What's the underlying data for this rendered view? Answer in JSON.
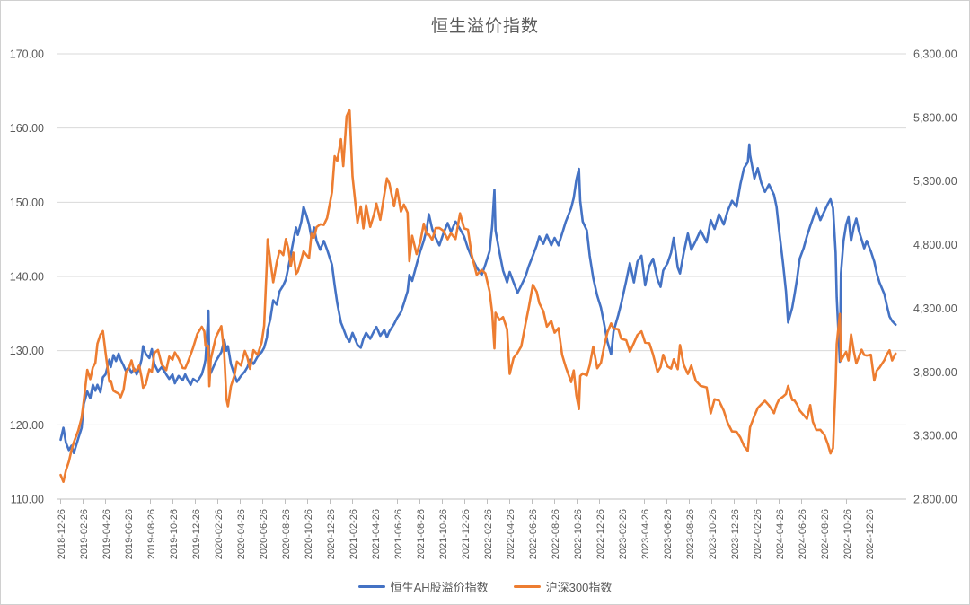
{
  "chart": {
    "title": "恒生溢价指数"
  },
  "legend": {
    "items": [
      {
        "label": "恒生AH股溢价指数",
        "color": "#4472C4"
      },
      {
        "label": "沪深300指数",
        "color": "#ED7D31"
      }
    ]
  },
  "colors": {
    "series_blue": "#4472C4",
    "series_orange": "#ED7D31",
    "axis_text": "#595959",
    "gridline": "#D9D9D9",
    "axis_line": "#BFBFBF"
  },
  "chart_data": {
    "type": "line",
    "title": "恒生溢价指数",
    "grid": "horizontal",
    "legend_position": "bottom",
    "left_axis": {
      "min": 110,
      "max": 170,
      "step": 10,
      "tick_labels": [
        "170.00",
        "160.00",
        "150.00",
        "140.00",
        "130.00",
        "120.00",
        "110.00"
      ]
    },
    "right_axis": {
      "min": 2800,
      "max": 6300,
      "step": 500,
      "tick_labels": [
        "6,300.00",
        "5,800.00",
        "5,300.00",
        "4,800.00",
        "4,300.00",
        "3,800.00",
        "3,300.00",
        "2,800.00"
      ]
    },
    "x_axis": {
      "tick_label_rotation": -90,
      "tick_labels": [
        "2018-12-26",
        "2019-02-26",
        "2019-04-26",
        "2019-06-26",
        "2019-08-26",
        "2019-10-26",
        "2019-12-26",
        "2020-02-26",
        "2020-04-26",
        "2020-06-26",
        "2020-08-26",
        "2020-10-26",
        "2020-12-26",
        "2021-02-26",
        "2021-04-26",
        "2021-06-26",
        "2021-08-26",
        "2021-10-26",
        "2021-12-26",
        "2022-02-26",
        "2022-04-26",
        "2022-06-26",
        "2022-08-26",
        "2022-10-26",
        "2022-12-26",
        "2023-02-26",
        "2023-04-26",
        "2023-06-26",
        "2023-08-26",
        "2023-10-26",
        "2023-12-26",
        "2024-02-26",
        "2024-04-26",
        "2024-06-26",
        "2024-08-26",
        "2024-10-26",
        "2024-12-26"
      ]
    },
    "series": [
      {
        "name": "恒生AH股溢价指数",
        "axis": "left",
        "color": "#4472C4",
        "value_index": 1
      },
      {
        "name": "沪深300指数",
        "axis": "right",
        "color": "#ED7D31",
        "value_index": 2
      }
    ],
    "points": [
      [
        "2018-12-26",
        118.0,
        2990
      ],
      [
        "2019-01-03",
        119.6,
        2936
      ],
      [
        "2019-01-10",
        117.6,
        3025
      ],
      [
        "2019-01-18",
        116.6,
        3095
      ],
      [
        "2019-01-25",
        117.2,
        3184
      ],
      [
        "2019-02-01",
        116.2,
        3247
      ],
      [
        "2019-02-13",
        118.2,
        3340
      ],
      [
        "2019-02-22",
        119.6,
        3440
      ],
      [
        "2019-02-28",
        122.8,
        3572
      ],
      [
        "2019-03-07",
        124.5,
        3816
      ],
      [
        "2019-03-15",
        123.6,
        3743
      ],
      [
        "2019-03-22",
        125.4,
        3835
      ],
      [
        "2019-03-29",
        124.6,
        3872
      ],
      [
        "2019-04-04",
        125.4,
        4022
      ],
      [
        "2019-04-12",
        124.4,
        4092
      ],
      [
        "2019-04-19",
        126.4,
        4120
      ],
      [
        "2019-04-26",
        126.8,
        3953
      ],
      [
        "2019-05-06",
        128.8,
        3722
      ],
      [
        "2019-05-10",
        127.8,
        3730
      ],
      [
        "2019-05-17",
        129.4,
        3652
      ],
      [
        "2019-05-24",
        128.6,
        3640
      ],
      [
        "2019-05-31",
        129.6,
        3629
      ],
      [
        "2019-06-06",
        128.8,
        3600
      ],
      [
        "2019-06-14",
        128.0,
        3660
      ],
      [
        "2019-06-21",
        127.2,
        3800
      ],
      [
        "2019-06-28",
        127.8,
        3825
      ],
      [
        "2019-07-05",
        127.0,
        3890
      ],
      [
        "2019-07-12",
        127.6,
        3808
      ],
      [
        "2019-07-19",
        126.8,
        3815
      ],
      [
        "2019-07-26",
        127.6,
        3850
      ],
      [
        "2019-08-02",
        128.8,
        3758
      ],
      [
        "2019-08-06",
        130.6,
        3675
      ],
      [
        "2019-08-13",
        129.6,
        3700
      ],
      [
        "2019-08-23",
        129.0,
        3820
      ],
      [
        "2019-08-30",
        130.2,
        3800
      ],
      [
        "2019-09-06",
        128.2,
        3948
      ],
      [
        "2019-09-16",
        127.2,
        3972
      ],
      [
        "2019-09-26",
        127.8,
        3860
      ],
      [
        "2019-10-08",
        126.8,
        3814
      ],
      [
        "2019-10-16",
        126.2,
        3920
      ],
      [
        "2019-10-25",
        126.8,
        3896
      ],
      [
        "2019-11-01",
        125.6,
        3953
      ],
      [
        "2019-11-11",
        126.6,
        3905
      ],
      [
        "2019-11-22",
        126.0,
        3830
      ],
      [
        "2019-11-29",
        126.8,
        3828
      ],
      [
        "2019-12-06",
        126.0,
        3880
      ],
      [
        "2019-12-13",
        125.4,
        3935
      ],
      [
        "2019-12-20",
        126.2,
        3990
      ],
      [
        "2019-12-31",
        125.8,
        4097
      ],
      [
        "2020-01-13",
        126.8,
        4155
      ],
      [
        "2020-01-20",
        128.0,
        4118
      ],
      [
        "2020-01-23",
        128.8,
        4004
      ],
      [
        "2020-01-31",
        135.4,
        4004
      ],
      [
        "2020-02-03",
        127.6,
        3688
      ],
      [
        "2020-02-07",
        127.0,
        3900
      ],
      [
        "2020-02-14",
        127.8,
        3988
      ],
      [
        "2020-02-21",
        128.6,
        4074
      ],
      [
        "2020-03-05",
        129.8,
        4160
      ],
      [
        "2020-03-13",
        131.4,
        3940
      ],
      [
        "2020-03-19",
        130.0,
        3589
      ],
      [
        "2020-03-23",
        130.6,
        3530
      ],
      [
        "2020-03-31",
        128.2,
        3686
      ],
      [
        "2020-04-10",
        126.8,
        3769
      ],
      [
        "2020-04-17",
        125.8,
        3881
      ],
      [
        "2020-04-28",
        126.6,
        3850
      ],
      [
        "2020-05-08",
        127.2,
        3964
      ],
      [
        "2020-05-15",
        127.8,
        3912
      ],
      [
        "2020-05-22",
        128.8,
        3824
      ],
      [
        "2020-06-01",
        128.2,
        3971
      ],
      [
        "2020-06-12",
        129.2,
        3934
      ],
      [
        "2020-06-23",
        129.8,
        4030
      ],
      [
        "2020-06-30",
        130.4,
        4163
      ],
      [
        "2020-07-07",
        131.8,
        4670
      ],
      [
        "2020-07-09",
        132.8,
        4842
      ],
      [
        "2020-07-16",
        134.2,
        4680
      ],
      [
        "2020-07-24",
        136.8,
        4505
      ],
      [
        "2020-08-03",
        136.2,
        4660
      ],
      [
        "2020-08-11",
        138.0,
        4755
      ],
      [
        "2020-08-21",
        138.8,
        4718
      ],
      [
        "2020-08-28",
        139.6,
        4844
      ],
      [
        "2020-09-04",
        141.2,
        4770
      ],
      [
        "2020-09-11",
        143.0,
        4633
      ],
      [
        "2020-09-18",
        144.8,
        4737
      ],
      [
        "2020-09-25",
        146.6,
        4570
      ],
      [
        "2020-09-30",
        145.6,
        4588
      ],
      [
        "2020-10-09",
        147.4,
        4682
      ],
      [
        "2020-10-15",
        149.4,
        4748
      ],
      [
        "2020-10-23",
        148.2,
        4718
      ],
      [
        "2020-10-30",
        147.0,
        4695
      ],
      [
        "2020-11-06",
        145.2,
        4886
      ],
      [
        "2020-11-13",
        146.6,
        4856
      ],
      [
        "2020-11-20",
        144.8,
        4938
      ],
      [
        "2020-11-30",
        143.6,
        4960
      ],
      [
        "2020-12-09",
        144.8,
        4955
      ],
      [
        "2020-12-18",
        143.6,
        5010
      ],
      [
        "2020-12-31",
        141.6,
        5211
      ],
      [
        "2021-01-08",
        138.8,
        5495
      ],
      [
        "2021-01-15",
        136.4,
        5458
      ],
      [
        "2021-01-25",
        133.8,
        5629
      ],
      [
        "2021-02-01",
        133.0,
        5417
      ],
      [
        "2021-02-10",
        131.8,
        5808
      ],
      [
        "2021-02-18",
        131.2,
        5861
      ],
      [
        "2021-02-26",
        132.4,
        5337
      ],
      [
        "2021-03-09",
        130.8,
        4971
      ],
      [
        "2021-03-18",
        130.4,
        5101
      ],
      [
        "2021-03-25",
        131.6,
        4928
      ],
      [
        "2021-04-02",
        132.4,
        5110
      ],
      [
        "2021-04-13",
        131.6,
        4940
      ],
      [
        "2021-04-23",
        132.6,
        5035
      ],
      [
        "2021-04-30",
        133.2,
        5123
      ],
      [
        "2021-05-10",
        132.0,
        4996
      ],
      [
        "2021-05-21",
        132.8,
        5194
      ],
      [
        "2021-05-28",
        131.8,
        5321
      ],
      [
        "2021-06-04",
        132.6,
        5282
      ],
      [
        "2021-06-17",
        133.6,
        5102
      ],
      [
        "2021-06-25",
        134.4,
        5240
      ],
      [
        "2021-07-05",
        135.2,
        5060
      ],
      [
        "2021-07-13",
        136.4,
        5115
      ],
      [
        "2021-07-23",
        138.0,
        5051
      ],
      [
        "2021-07-28",
        140.2,
        4670
      ],
      [
        "2021-08-05",
        139.4,
        4870
      ],
      [
        "2021-08-17",
        141.6,
        4726
      ],
      [
        "2021-08-27",
        143.4,
        4821
      ],
      [
        "2021-09-06",
        144.8,
        4965
      ],
      [
        "2021-09-14",
        146.4,
        4880
      ],
      [
        "2021-09-20",
        148.4,
        4880
      ],
      [
        "2021-09-29",
        146.4,
        4837
      ],
      [
        "2021-10-08",
        145.2,
        4930
      ],
      [
        "2021-10-18",
        144.2,
        4932
      ],
      [
        "2021-10-29",
        145.8,
        4909
      ],
      [
        "2021-11-10",
        147.2,
        4842
      ],
      [
        "2021-11-19",
        146.0,
        4890
      ],
      [
        "2021-12-01",
        147.4,
        4844
      ],
      [
        "2021-12-13",
        146.4,
        5046
      ],
      [
        "2021-12-24",
        145.4,
        4928
      ],
      [
        "2022-01-04",
        143.8,
        4918
      ],
      [
        "2022-01-14",
        142.6,
        4723
      ],
      [
        "2022-01-28",
        141.2,
        4563
      ],
      [
        "2022-02-11",
        140.2,
        4601
      ],
      [
        "2022-02-21",
        141.6,
        4574
      ],
      [
        "2022-03-02",
        143.4,
        4434
      ],
      [
        "2022-03-09",
        146.8,
        4266
      ],
      [
        "2022-03-15",
        151.7,
        3984
      ],
      [
        "2022-03-18",
        146.2,
        4265
      ],
      [
        "2022-03-29",
        143.2,
        4207
      ],
      [
        "2022-04-08",
        140.8,
        4230
      ],
      [
        "2022-04-19",
        139.2,
        4135
      ],
      [
        "2022-04-26",
        140.6,
        3784
      ],
      [
        "2022-05-06",
        139.2,
        3909
      ],
      [
        "2022-05-17",
        137.8,
        3951
      ],
      [
        "2022-05-27",
        138.8,
        4001
      ],
      [
        "2022-06-08",
        140.0,
        4177
      ],
      [
        "2022-06-17",
        141.4,
        4309
      ],
      [
        "2022-06-28",
        142.8,
        4485
      ],
      [
        "2022-07-08",
        144.2,
        4429
      ],
      [
        "2022-07-15",
        145.4,
        4340
      ],
      [
        "2022-07-26",
        144.4,
        4277
      ],
      [
        "2022-08-05",
        145.6,
        4156
      ],
      [
        "2022-08-17",
        144.2,
        4200
      ],
      [
        "2022-08-26",
        145.2,
        4108
      ],
      [
        "2022-09-06",
        144.2,
        4144
      ],
      [
        "2022-09-16",
        145.8,
        3933
      ],
      [
        "2022-09-26",
        147.4,
        3837
      ],
      [
        "2022-10-10",
        149.2,
        3720
      ],
      [
        "2022-10-17",
        150.6,
        3811
      ],
      [
        "2022-10-24",
        153.0,
        3617
      ],
      [
        "2022-10-31",
        154.5,
        3508
      ],
      [
        "2022-11-04",
        150.2,
        3767
      ],
      [
        "2022-11-11",
        147.4,
        3788
      ],
      [
        "2022-11-22",
        146.2,
        3772
      ],
      [
        "2022-11-30",
        142.8,
        3853
      ],
      [
        "2022-12-09",
        139.8,
        3998
      ],
      [
        "2022-12-20",
        137.4,
        3829
      ],
      [
        "2022-12-30",
        135.8,
        3872
      ],
      [
        "2023-01-09",
        133.4,
        4012
      ],
      [
        "2023-01-17",
        131.2,
        4110
      ],
      [
        "2023-01-27",
        129.5,
        4181
      ],
      [
        "2023-02-03",
        132.6,
        4141
      ],
      [
        "2023-02-16",
        134.8,
        4135
      ],
      [
        "2023-02-24",
        136.4,
        4060
      ],
      [
        "2023-03-07",
        139.4,
        4049
      ],
      [
        "2023-03-17",
        141.8,
        3959
      ],
      [
        "2023-03-28",
        139.2,
        4027
      ],
      [
        "2023-04-07",
        142.0,
        4090
      ],
      [
        "2023-04-18",
        142.8,
        4119
      ],
      [
        "2023-04-28",
        138.8,
        4030
      ],
      [
        "2023-05-09",
        141.4,
        4025
      ],
      [
        "2023-05-19",
        142.4,
        3937
      ],
      [
        "2023-05-31",
        139.6,
        3799
      ],
      [
        "2023-06-09",
        138.6,
        3837
      ],
      [
        "2023-06-16",
        140.8,
        3934
      ],
      [
        "2023-06-28",
        141.8,
        3842
      ],
      [
        "2023-07-07",
        143.2,
        3826
      ],
      [
        "2023-07-14",
        145.2,
        3899
      ],
      [
        "2023-07-25",
        141.2,
        3821
      ],
      [
        "2023-07-31",
        140.4,
        4011
      ],
      [
        "2023-08-11",
        143.2,
        3855
      ],
      [
        "2023-08-22",
        145.8,
        3784
      ],
      [
        "2023-09-01",
        143.6,
        3850
      ],
      [
        "2023-09-13",
        144.8,
        3730
      ],
      [
        "2023-09-26",
        146.2,
        3690
      ],
      [
        "2023-10-12",
        144.6,
        3678
      ],
      [
        "2023-10-23",
        147.6,
        3474
      ],
      [
        "2023-11-03",
        146.4,
        3585
      ],
      [
        "2023-11-15",
        148.4,
        3574
      ],
      [
        "2023-11-28",
        147.0,
        3496
      ],
      [
        "2023-12-08",
        148.8,
        3400
      ],
      [
        "2023-12-20",
        150.2,
        3332
      ],
      [
        "2024-01-02",
        149.4,
        3329
      ],
      [
        "2024-01-12",
        152.4,
        3284
      ],
      [
        "2024-01-22",
        154.6,
        3218
      ],
      [
        "2024-02-02",
        155.4,
        3179
      ],
      [
        "2024-02-06",
        157.8,
        3311
      ],
      [
        "2024-02-08",
        156.4,
        3364
      ],
      [
        "2024-02-20",
        153.2,
        3455
      ],
      [
        "2024-02-29",
        154.6,
        3516
      ],
      [
        "2024-03-08",
        152.6,
        3545
      ],
      [
        "2024-03-18",
        151.4,
        3573
      ],
      [
        "2024-03-29",
        152.4,
        3537
      ],
      [
        "2024-04-12",
        151.0,
        3475
      ],
      [
        "2024-04-19",
        149.4,
        3541
      ],
      [
        "2024-04-26",
        146.2,
        3584
      ],
      [
        "2024-05-06",
        141.8,
        3605
      ],
      [
        "2024-05-14",
        138.0,
        3626
      ],
      [
        "2024-05-20",
        133.8,
        3690
      ],
      [
        "2024-05-31",
        135.8,
        3579
      ],
      [
        "2024-06-07",
        137.6,
        3574
      ],
      [
        "2024-06-14",
        139.8,
        3541
      ],
      [
        "2024-06-21",
        142.4,
        3496
      ],
      [
        "2024-07-01",
        143.8,
        3462
      ],
      [
        "2024-07-10",
        145.4,
        3430
      ],
      [
        "2024-07-19",
        146.8,
        3539
      ],
      [
        "2024-07-26",
        147.8,
        3409
      ],
      [
        "2024-08-05",
        149.2,
        3343
      ],
      [
        "2024-08-16",
        147.6,
        3345
      ],
      [
        "2024-08-27",
        148.8,
        3305
      ],
      [
        "2024-09-06",
        149.8,
        3231
      ],
      [
        "2024-09-13",
        150.4,
        3159
      ],
      [
        "2024-09-20",
        149.2,
        3201
      ],
      [
        "2024-09-27",
        143.2,
        3704
      ],
      [
        "2024-09-30",
        137.2,
        4018
      ],
      [
        "2024-10-08",
        128.5,
        4256
      ],
      [
        "2024-10-11",
        140.4,
        3887
      ],
      [
        "2024-10-18",
        144.8,
        3925
      ],
      [
        "2024-10-25",
        147.0,
        3957
      ],
      [
        "2024-11-01",
        148.0,
        3890
      ],
      [
        "2024-11-08",
        144.8,
        4095
      ],
      [
        "2024-11-15",
        146.6,
        3968
      ],
      [
        "2024-11-22",
        147.8,
        3866
      ],
      [
        "2024-11-29",
        146.2,
        3917
      ],
      [
        "2024-12-06",
        145.0,
        3974
      ],
      [
        "2024-12-13",
        143.8,
        3933
      ],
      [
        "2024-12-20",
        144.8,
        3928
      ],
      [
        "2024-12-31",
        143.4,
        3935
      ],
      [
        "2025-01-10",
        142.0,
        3732
      ],
      [
        "2025-01-17",
        140.4,
        3812
      ],
      [
        "2025-01-24",
        139.2,
        3833
      ],
      [
        "2025-02-07",
        137.6,
        3892
      ],
      [
        "2025-02-14",
        136.0,
        3939
      ],
      [
        "2025-02-21",
        134.6,
        3970
      ],
      [
        "2025-02-28",
        134.0,
        3890
      ],
      [
        "2025-03-07",
        133.5,
        3944
      ]
    ]
  }
}
